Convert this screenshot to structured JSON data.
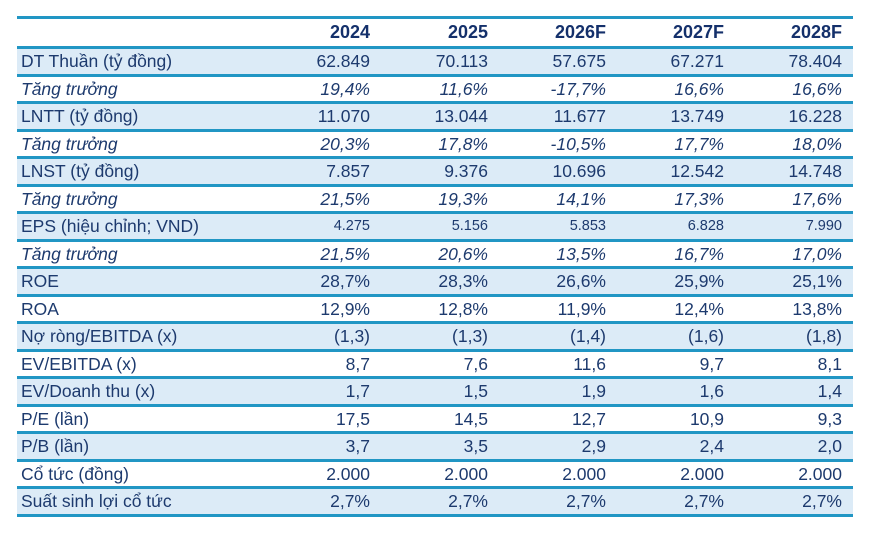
{
  "colors": {
    "separator_line": "#2196c4",
    "header_text": "#14306b",
    "body_text": "#1d3a6e",
    "shaded_row_bg": "#dcebf7",
    "page_bg": "#ffffff"
  },
  "table": {
    "columns": [
      "",
      "2024",
      "2025",
      "2026F",
      "2027F",
      "2028F"
    ],
    "rows": [
      {
        "label": "DT Thuần (tỷ đồng)",
        "values": [
          "62.849",
          "70.113",
          "57.675",
          "67.271",
          "78.404"
        ],
        "style": "shaded"
      },
      {
        "label": "Tăng trưởng",
        "values": [
          "19,4%",
          "11,6%",
          "-17,7%",
          "16,6%",
          "16,6%"
        ],
        "style": "growth"
      },
      {
        "label": "LNTT (tỷ đồng)",
        "values": [
          "11.070",
          "13.044",
          "11.677",
          "13.749",
          "16.228"
        ],
        "style": "shaded"
      },
      {
        "label": "Tăng trưởng",
        "values": [
          "20,3%",
          "17,8%",
          "-10,5%",
          "17,7%",
          "18,0%"
        ],
        "style": "growth"
      },
      {
        "label": "LNST (tỷ đồng)",
        "values": [
          "7.857",
          "9.376",
          "10.696",
          "12.542",
          "14.748"
        ],
        "style": "shaded"
      },
      {
        "label": "Tăng trưởng",
        "values": [
          "21,5%",
          "19,3%",
          "14,1%",
          "17,3%",
          "17,6%"
        ],
        "style": "growth"
      },
      {
        "label": "EPS (hiệu chỉnh; VND)",
        "values": [
          "4.275",
          "5.156",
          "5.853",
          "6.828",
          "7.990"
        ],
        "style": "shaded small-values"
      },
      {
        "label": "Tăng trưởng",
        "values": [
          "21,5%",
          "20,6%",
          "13,5%",
          "16,7%",
          "17,0%"
        ],
        "style": "growth"
      },
      {
        "label": "ROE",
        "values": [
          "28,7%",
          "28,3%",
          "26,6%",
          "25,9%",
          "25,1%"
        ],
        "style": "shaded"
      },
      {
        "label": "ROA",
        "values": [
          "12,9%",
          "12,8%",
          "11,9%",
          "12,4%",
          "13,8%"
        ],
        "style": "plain"
      },
      {
        "label": "Nợ ròng/EBITDA (x)",
        "values": [
          "(1,3)",
          "(1,3)",
          "(1,4)",
          "(1,6)",
          "(1,8)"
        ],
        "style": "shaded"
      },
      {
        "label": "EV/EBITDA (x)",
        "values": [
          "8,7",
          "7,6",
          "11,6",
          "9,7",
          "8,1"
        ],
        "style": "plain"
      },
      {
        "label": "EV/Doanh thu (x)",
        "values": [
          "1,7",
          "1,5",
          "1,9",
          "1,6",
          "1,4"
        ],
        "style": "shaded"
      },
      {
        "label": "P/E (lần)",
        "values": [
          "17,5",
          "14,5",
          "12,7",
          "10,9",
          "9,3"
        ],
        "style": "plain"
      },
      {
        "label": "P/B (lần)",
        "values": [
          "3,7",
          "3,5",
          "2,9",
          "2,4",
          "2,0"
        ],
        "style": "shaded"
      },
      {
        "label": "Cổ tức (đồng)",
        "values": [
          "2.000",
          "2.000",
          "2.000",
          "2.000",
          "2.000"
        ],
        "style": "plain"
      },
      {
        "label": "Suất sinh lợi cổ tức",
        "values": [
          "2,7%",
          "2,7%",
          "2,7%",
          "2,7%",
          "2,7%"
        ],
        "style": "shaded"
      }
    ]
  }
}
